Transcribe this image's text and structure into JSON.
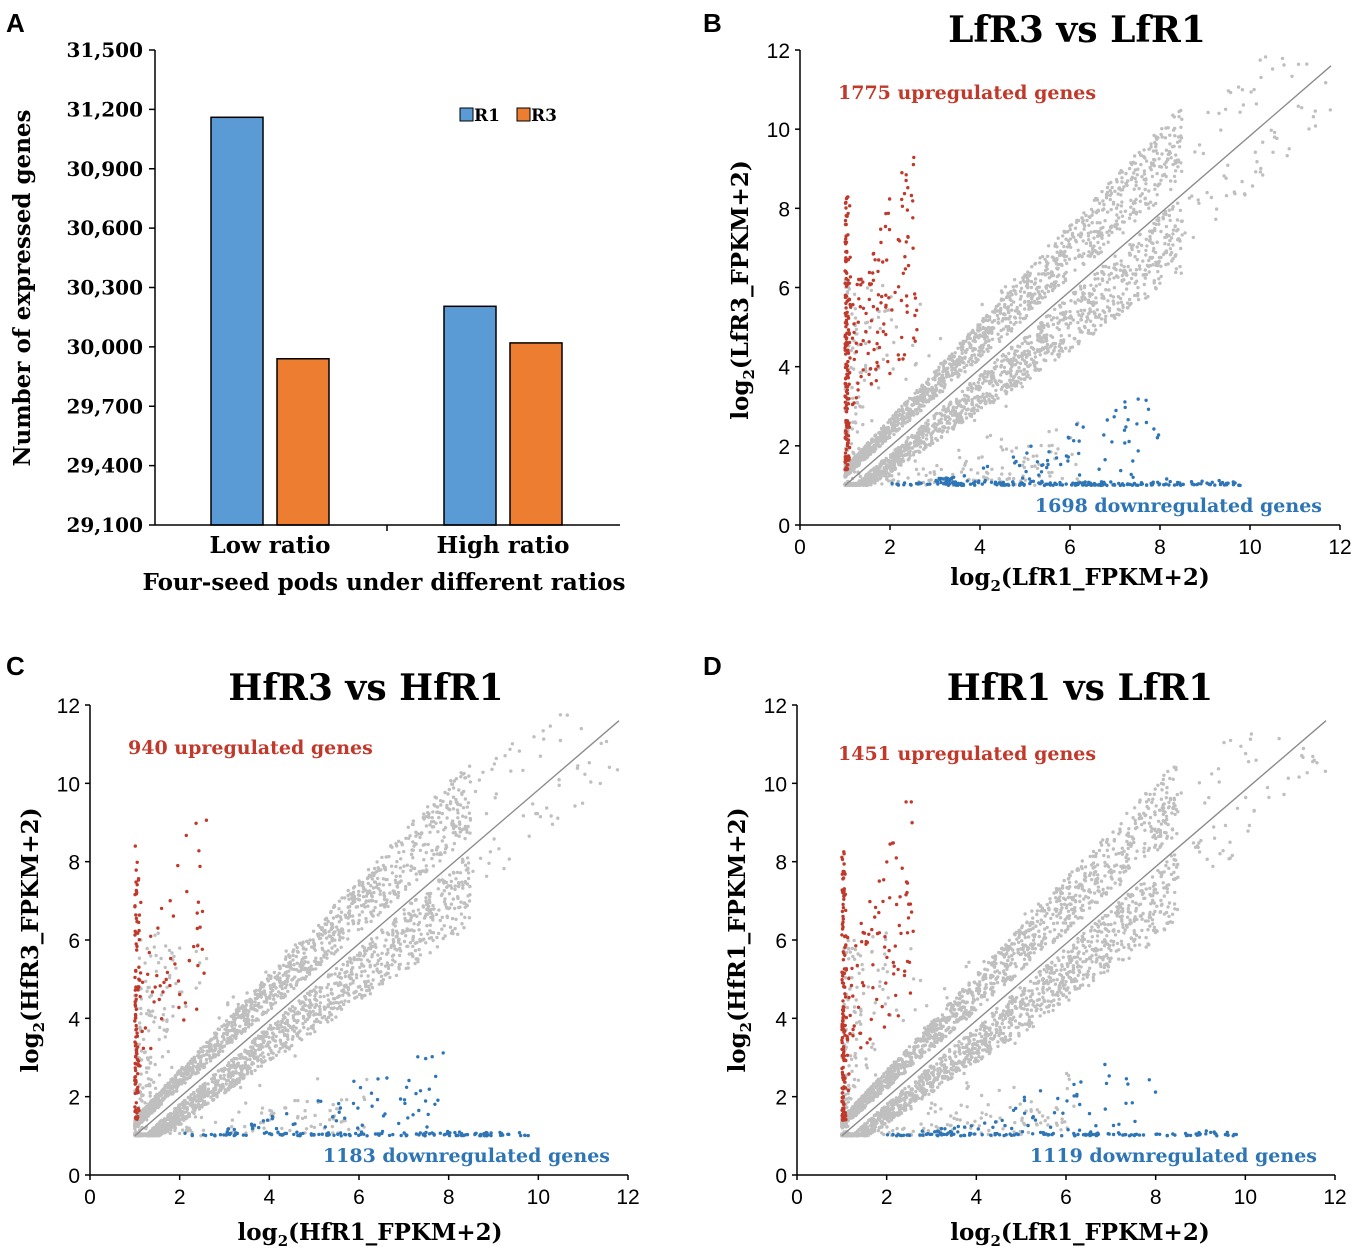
{
  "colors": {
    "r1_bar": "#5b9bd5",
    "r3_bar": "#ed7d31",
    "up": "#c0392b",
    "down": "#2e75b6",
    "neutral": "#bfbfbf",
    "diagonal": "#8c8c8c",
    "axis": "#000000"
  },
  "chart_data": [
    {
      "panel": "A",
      "type": "bar",
      "title": "",
      "xlabel": "Four-seed pods under different ratios",
      "ylabel": "Number of expressed genes",
      "categories": [
        "Low ratio",
        "High ratio"
      ],
      "series": [
        {
          "name": "R1",
          "values": [
            31160,
            30205
          ]
        },
        {
          "name": "R3",
          "values": [
            29940,
            30020
          ]
        }
      ],
      "ylim": [
        29100,
        31500
      ],
      "yticks": [
        29100,
        29400,
        29700,
        30000,
        30300,
        30600,
        30900,
        31200,
        31500
      ],
      "ytick_labels": [
        "29,100",
        "29,400",
        "29,700",
        "30,000",
        "30,300",
        "30,600",
        "30,900",
        "31,200",
        "31,500"
      ],
      "legend": "top-right",
      "grid": false
    },
    {
      "panel": "B",
      "type": "scatter",
      "title": "LfR3 vs LfR1",
      "xlabel": "log2(LfR1_FPKM+2)",
      "ylabel": "log2(LfR3_FPKM+2)",
      "xlim": [
        0,
        12
      ],
      "ylim": [
        0,
        12
      ],
      "xticks": [
        0,
        2,
        4,
        6,
        8,
        10,
        12
      ],
      "yticks": [
        0,
        2,
        4,
        6,
        8,
        10,
        12
      ],
      "annotations": {
        "up": "1775 upregulated genes",
        "down": "1698 downregulated genes"
      },
      "up_count": 1775,
      "down_count": 1698,
      "diagonal": [
        [
          1,
          1
        ],
        [
          11.8,
          11.6
        ]
      ],
      "grid": false
    },
    {
      "panel": "C",
      "type": "scatter",
      "title": "HfR3 vs HfR1",
      "xlabel": "log2(HfR1_FPKM+2)",
      "ylabel": "log2(HfR3_FPKM+2)",
      "xlim": [
        0,
        12
      ],
      "ylim": [
        0,
        12
      ],
      "xticks": [
        0,
        2,
        4,
        6,
        8,
        10,
        12
      ],
      "yticks": [
        0,
        2,
        4,
        6,
        8,
        10,
        12
      ],
      "annotations": {
        "up": "940 upregulated genes",
        "down": "1183 downregulated genes"
      },
      "up_count": 940,
      "down_count": 1183,
      "diagonal": [
        [
          1,
          1
        ],
        [
          11.8,
          11.6
        ]
      ],
      "grid": false
    },
    {
      "panel": "D",
      "type": "scatter",
      "title": "HfR1 vs LfR1",
      "xlabel": "log2(LfR1_FPKM+2)",
      "ylabel": "log2(HfR1_FPKM+2)",
      "xlim": [
        0,
        12
      ],
      "ylim": [
        0,
        12
      ],
      "xticks": [
        0,
        2,
        4,
        6,
        8,
        10,
        12
      ],
      "yticks": [
        0,
        2,
        4,
        6,
        8,
        10,
        12
      ],
      "annotations": {
        "up": "1451 upregulated genes",
        "down": "1119 downregulated genes"
      },
      "up_count": 1451,
      "down_count": 1119,
      "diagonal": [
        [
          1,
          1
        ],
        [
          11.8,
          11.6
        ]
      ],
      "grid": false
    }
  ]
}
